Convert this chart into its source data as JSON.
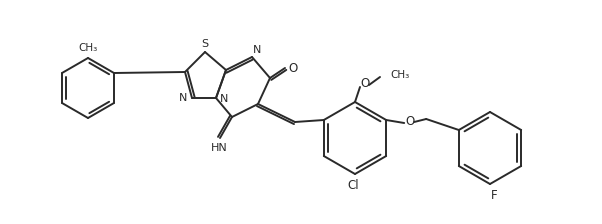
{
  "bg_color": "#ffffff",
  "line_color": "#2a2a2a",
  "line_width": 1.4,
  "figsize": [
    6.02,
    2.24
  ],
  "dpi": 100,
  "atoms": {
    "S_label": "S",
    "N_label": "N",
    "O_label": "O",
    "Cl_label": "Cl",
    "F_label": "F",
    "HN_label": "HN",
    "OMe_label": "O",
    "Me_label": "CH₃",
    "carbonyl_O": "O"
  }
}
